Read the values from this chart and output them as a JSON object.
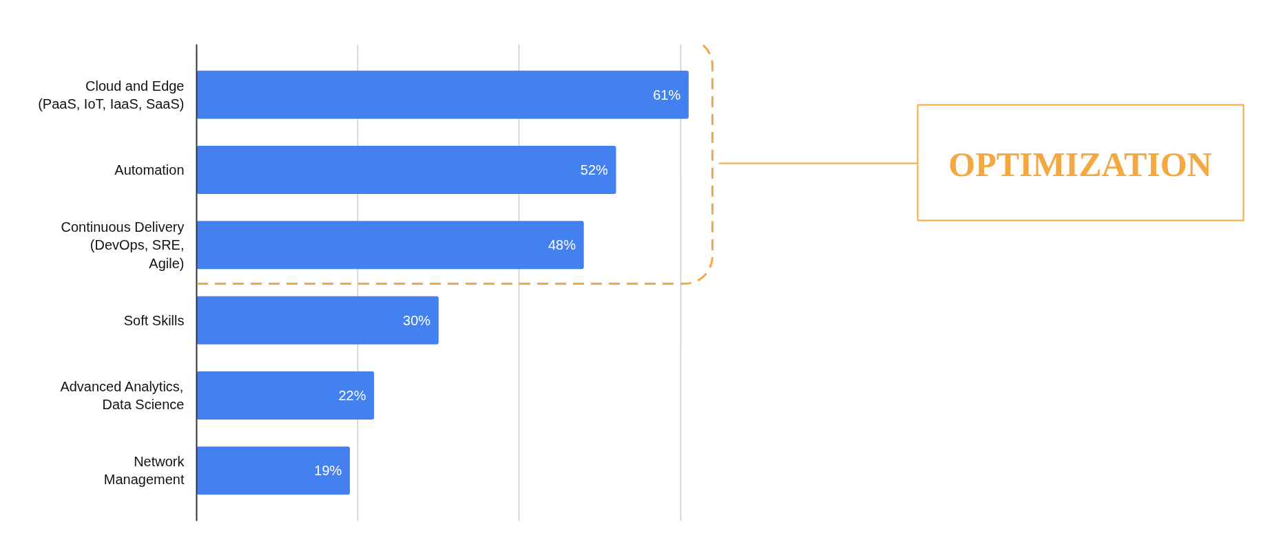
{
  "chart_data": {
    "type": "bar",
    "orientation": "horizontal",
    "categories": [
      "Cloud and Edge\n(PaaS, IoT, IaaS, SaaS)",
      "Automation",
      "Continuous Delivery\n(DevOps, SRE,\nAgile)",
      "Soft Skills",
      "Advanced Analytics,\nData Science",
      "Network\nManagement"
    ],
    "values": [
      61,
      52,
      48,
      30,
      22,
      19
    ],
    "value_labels": [
      "61%",
      "52%",
      "48%",
      "30%",
      "22%",
      "19%"
    ],
    "color": "#4380f0",
    "xticks": [
      {
        "value": 0,
        "label": null
      },
      {
        "value": 20,
        "label": null
      },
      {
        "value": 40,
        "label": null
      },
      {
        "value": 60,
        "label": null
      }
    ],
    "grid": "x",
    "tick_labels": "y",
    "annotations": [
      "OPTIMIZATION"
    ]
  }
}
